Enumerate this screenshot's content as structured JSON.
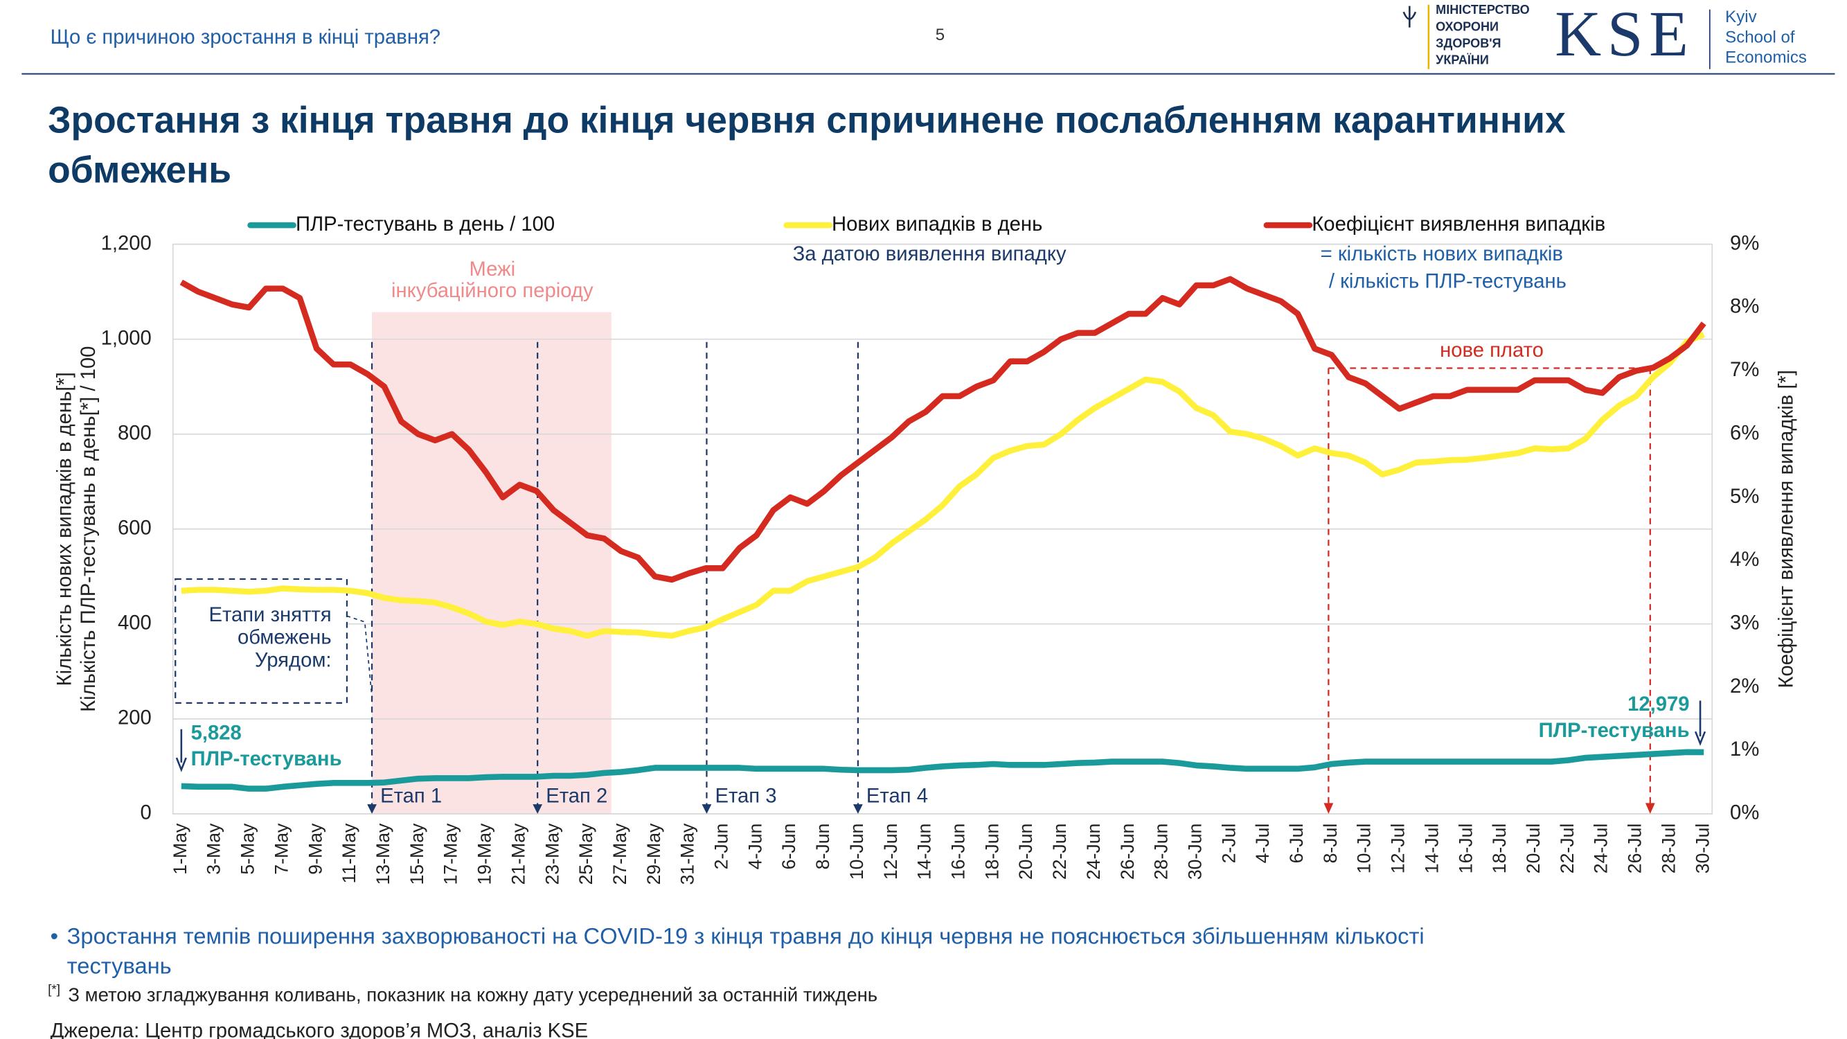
{
  "header": {
    "topic": "Що є причиною зростання в кінці травня?",
    "page": "5",
    "ministry": [
      "МІНІСТЕРСТВО",
      "ОХОРОНИ",
      "ЗДОРОВ'Я",
      "УКРАЇНИ"
    ],
    "kse": "KSE",
    "school": [
      "Kyiv",
      "School of",
      "Economics"
    ]
  },
  "title": [
    "Зростання з кінця травня до кінця червня спричинене послабленням карантинних",
    "обмежень"
  ],
  "chart_data": {
    "type": "line",
    "categories": [
      "1-May",
      null,
      "3-May",
      null,
      "5-May",
      null,
      "7-May",
      null,
      "9-May",
      null,
      "11-May",
      null,
      "13-May",
      null,
      "15-May",
      null,
      "17-May",
      null,
      "19-May",
      null,
      "21-May",
      null,
      "23-May",
      null,
      "25-May",
      null,
      "27-May",
      null,
      "29-May",
      null,
      "31-May",
      null,
      "2-Jun",
      null,
      "4-Jun",
      null,
      "6-Jun",
      null,
      "8-Jun",
      null,
      "10-Jun",
      null,
      "12-Jun",
      null,
      "14-Jun",
      null,
      "16-Jun",
      null,
      "18-Jun",
      null,
      "20-Jun",
      null,
      "22-Jun",
      null,
      "24-Jun",
      null,
      "26-Jun",
      null,
      "28-Jun",
      null,
      "30-Jun",
      null,
      "2-Jul",
      null,
      "4-Jul",
      null,
      "6-Jul",
      null,
      "8-Jul",
      null,
      "10-Jul",
      null,
      "12-Jul",
      null,
      "14-Jul",
      null,
      "16-Jul",
      null,
      "18-Jul",
      null,
      "20-Jul",
      null,
      "22-Jul",
      null,
      "24-Jul",
      null,
      "26-Jul",
      null,
      "28-Jul",
      null,
      "30-Jul"
    ],
    "series": [
      {
        "name": "ПЛР-тестувань в день / 100",
        "color": "#1a9a9a",
        "axis": "y",
        "values": [
          58.28,
          57,
          57,
          57,
          53,
          53,
          57,
          60,
          63,
          65,
          65,
          65,
          66,
          70,
          74,
          75,
          75,
          75,
          77,
          78,
          78,
          78,
          80,
          80,
          82,
          86,
          88,
          92,
          97,
          97,
          97,
          97,
          97,
          97,
          95,
          95,
          95,
          95,
          95,
          93,
          92,
          92,
          92,
          93,
          97,
          100,
          102,
          103,
          105,
          103,
          103,
          103,
          105,
          107,
          108,
          110,
          110,
          110,
          110,
          107,
          102,
          100,
          97,
          95,
          95,
          95,
          95,
          98,
          105,
          108,
          110,
          110,
          110,
          110,
          110,
          110,
          110,
          110,
          110,
          110,
          110,
          110,
          113,
          118,
          120,
          122,
          124,
          126,
          128,
          130,
          129.79
        ]
      },
      {
        "name": "Нових випадків в день",
        "color": "#fff03c",
        "axis": "y",
        "values": [
          470,
          472,
          472,
          470,
          468,
          470,
          475,
          473,
          472,
          472,
          470,
          465,
          455,
          450,
          448,
          445,
          435,
          422,
          405,
          398,
          405,
          400,
          390,
          385,
          375,
          385,
          383,
          382,
          378,
          375,
          385,
          393,
          410,
          425,
          440,
          470,
          470,
          490,
          500,
          510,
          520,
          540,
          570,
          595,
          620,
          650,
          690,
          715,
          750,
          765,
          775,
          778,
          800,
          830,
          855,
          875,
          895,
          915,
          910,
          890,
          855,
          840,
          805,
          800,
          790,
          775,
          755,
          770,
          760,
          755,
          740,
          715,
          725,
          740,
          742,
          745,
          746,
          750,
          755,
          760,
          770,
          768,
          770,
          790,
          830,
          860,
          880,
          920,
          950,
          995,
          1010
        ]
      },
      {
        "name": "Коефіцієнт виявлення випадків",
        "color": "#d42a1f",
        "axis": "y2",
        "values": [
          8.4,
          8.25,
          8.15,
          8.05,
          8.0,
          8.3,
          8.3,
          8.15,
          7.35,
          7.1,
          7.1,
          6.95,
          6.75,
          6.2,
          6.0,
          5.9,
          6.0,
          5.75,
          5.4,
          5.0,
          5.2,
          5.1,
          4.8,
          4.6,
          4.4,
          4.35,
          4.15,
          4.05,
          3.75,
          3.7,
          3.8,
          3.88,
          3.88,
          4.2,
          4.4,
          4.8,
          5.0,
          4.9,
          5.1,
          5.35,
          5.55,
          5.75,
          5.95,
          6.2,
          6.35,
          6.6,
          6.6,
          6.75,
          6.85,
          7.15,
          7.15,
          7.3,
          7.5,
          7.6,
          7.6,
          7.75,
          7.9,
          7.9,
          8.15,
          8.05,
          8.35,
          8.35,
          8.45,
          8.3,
          8.2,
          8.1,
          7.9,
          7.35,
          7.25,
          6.9,
          6.8,
          6.6,
          6.4,
          6.5,
          6.6,
          6.6,
          6.7,
          6.7,
          6.7,
          6.7,
          6.85,
          6.85,
          6.85,
          6.7,
          6.65,
          6.9,
          7.0,
          7.05,
          7.2,
          7.4,
          7.75
        ]
      }
    ],
    "ylim": [
      0,
      1200
    ],
    "yticks": [
      0,
      200,
      400,
      600,
      800,
      {
        "value": 1000,
        "label": "1,000"
      },
      {
        "value": 1200,
        "label": "1,200"
      }
    ],
    "y2lim": [
      0,
      9
    ],
    "y2ticks": [
      {
        "value": 0,
        "label": "0%"
      },
      {
        "value": 1,
        "label": "1%"
      },
      {
        "value": 2,
        "label": "2%"
      },
      {
        "value": 3,
        "label": "3%"
      },
      {
        "value": 4,
        "label": "4%"
      },
      {
        "value": 5,
        "label": "5%"
      },
      {
        "value": 6,
        "label": "6%"
      },
      {
        "value": 7,
        "label": "7%"
      },
      {
        "value": 8,
        "label": "8%"
      },
      {
        "value": 9,
        "label": "9%"
      }
    ],
    "grid": true,
    "ylabel": [
      "Кількість нових випадків в день[*]",
      "Кількість ПЛР-тестувань в день[*] / 100"
    ],
    "y2label": "Коефіцієнт виявлення випадків [*]",
    "annotations": {
      "by_date": "За датою виявлення випадку",
      "ratio": [
        "= кількість нових випадків",
        "/ кількість ПЛР-тестувань"
      ],
      "incubation": [
        "Межі",
        "інкубаційного періоду"
      ],
      "stages_box": [
        "Етапи зняття",
        "обмежень",
        "Урядом:"
      ],
      "stages": [
        "Етап 1",
        "Етап 2",
        "Етап 3",
        "Етап 4"
      ],
      "plateau": "нове плато",
      "start": [
        "5,828",
        "ПЛР-тестувань"
      ],
      "end": [
        "12,979",
        "ПЛР-тестувань"
      ]
    }
  },
  "notes": {
    "bullet": [
      "Зростання темпів поширення захворюваності на COVID-19 з кінця травня до кінця червня не пояснюється збільшенням кількості",
      "тестувань"
    ],
    "footnote_mark": "[*]",
    "footnote": "З метою згладжування коливань, показник на кожну дату усереднений за останній тиждень",
    "source": "Джерела: Центр громадського здоров’я МОЗ, аналіз KSE"
  }
}
